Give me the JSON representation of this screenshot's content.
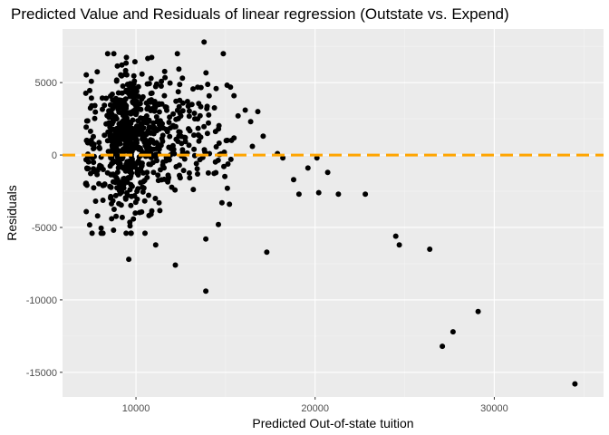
{
  "chart_data": {
    "type": "scatter",
    "title": "Predicted Value and Residuals of linear regression (Outstate vs. Expend)",
    "xlabel": "Predicted Out-of-state tuition",
    "ylabel": "Residuals",
    "xlim": [
      5900,
      36100
    ],
    "ylim": [
      -16700,
      8700
    ],
    "x_ticks": [
      10000,
      20000,
      30000
    ],
    "x_tick_labels": [
      "10000",
      "20000",
      "30000"
    ],
    "y_ticks": [
      -15000,
      -10000,
      -5000,
      0,
      5000
    ],
    "y_tick_labels": [
      "-15000",
      "-10000",
      "-5000",
      "0",
      "5000"
    ],
    "grid": true,
    "legend": "none",
    "reference_line": {
      "y": 0,
      "color": "#FFA500",
      "style": "dashed"
    },
    "colors": {
      "panel_bg": "#EBEBEB",
      "grid_major": "#FFFFFF",
      "point": "#000000"
    },
    "point_count": 777,
    "highlighted_points": [
      [
        34500,
        -15800
      ],
      [
        29100,
        -10800
      ],
      [
        27700,
        -12200
      ],
      [
        27100,
        -13200
      ],
      [
        26400,
        -6500
      ],
      [
        24700,
        -6200
      ],
      [
        24500,
        -5600
      ],
      [
        22800,
        -2700
      ],
      [
        21300,
        -2700
      ],
      [
        20700,
        -1200
      ],
      [
        20200,
        -2600
      ],
      [
        20100,
        -200
      ],
      [
        19600,
        -900
      ],
      [
        19100,
        -2700
      ],
      [
        18800,
        -1700
      ],
      [
        18200,
        -200
      ],
      [
        17900,
        100
      ],
      [
        17300,
        -6700
      ],
      [
        17100,
        1300
      ],
      [
        16800,
        3000
      ],
      [
        16500,
        600
      ],
      [
        16400,
        2300
      ],
      [
        16100,
        3100
      ],
      [
        15700,
        2700
      ],
      [
        15300,
        -300
      ],
      [
        15100,
        -2300
      ],
      [
        14800,
        -3300
      ],
      [
        14600,
        -4800
      ],
      [
        14100,
        100
      ],
      [
        13900,
        -5800
      ],
      [
        13900,
        -9400
      ],
      [
        13800,
        7800
      ],
      [
        12200,
        -7600
      ],
      [
        9600,
        -7200
      ],
      [
        11100,
        -6200
      ]
    ]
  }
}
